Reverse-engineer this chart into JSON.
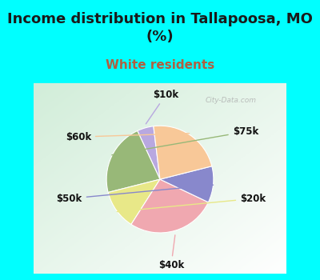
{
  "title": "Income distribution in Tallapoosa, MO\n(%)",
  "subtitle": "White residents",
  "title_fontsize": 13,
  "subtitle_fontsize": 11,
  "title_color": "#1a1a1a",
  "subtitle_color": "#b06040",
  "background_color": "#00ffff",
  "labels": [
    "$10k",
    "$75k",
    "$20k",
    "$40k",
    "$50k",
    "$60k"
  ],
  "sizes": [
    5,
    22,
    12,
    27,
    11,
    23
  ],
  "colors": [
    "#b8a8e0",
    "#98b878",
    "#e8e888",
    "#f0a8b0",
    "#8888cc",
    "#f8c898"
  ],
  "startangle": 97,
  "label_fontsize": 8.5,
  "label_color": "#111111",
  "watermark": "City-Data.com",
  "chart_bg_color": "#d0ecd8"
}
